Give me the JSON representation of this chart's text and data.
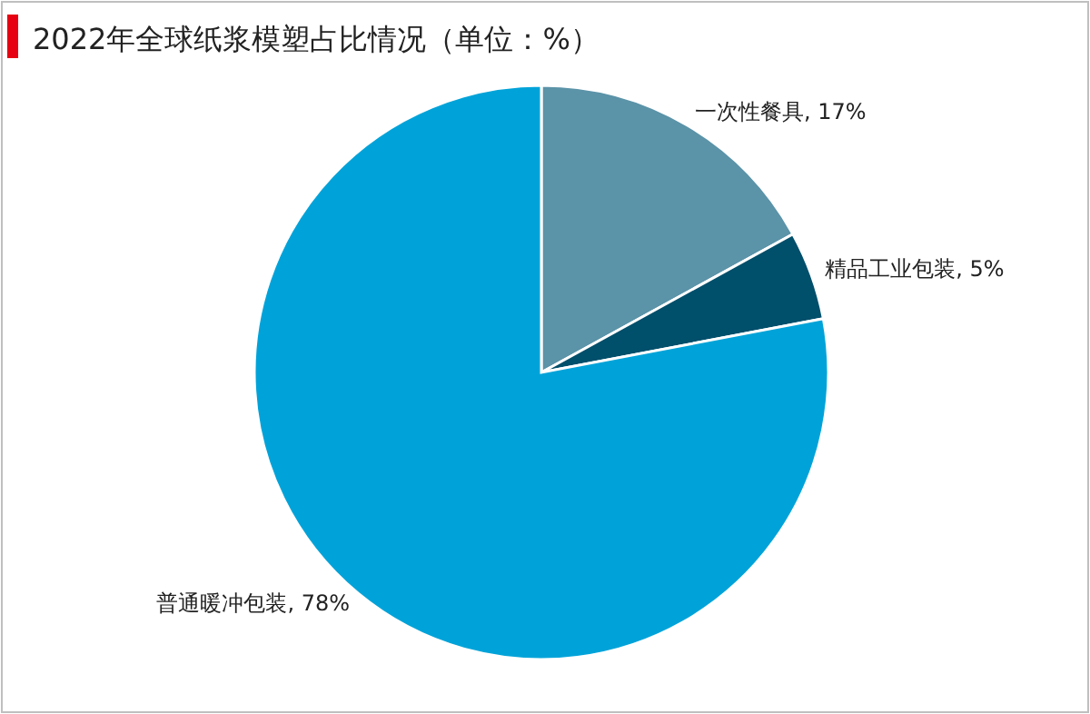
{
  "chart_data": {
    "type": "pie",
    "title": "2022年全球纸浆模塑占比情况（单位：%）",
    "categories": [
      "一次性餐具",
      "精品工业包装",
      "普通暖冲包装"
    ],
    "values": [
      17,
      5,
      78
    ],
    "colors": [
      "#5b93a8",
      "#004f6b",
      "#00a3d9"
    ],
    "value_labels": [
      ", 17%",
      ", 5%",
      ", 78%"
    ],
    "legend": false
  }
}
